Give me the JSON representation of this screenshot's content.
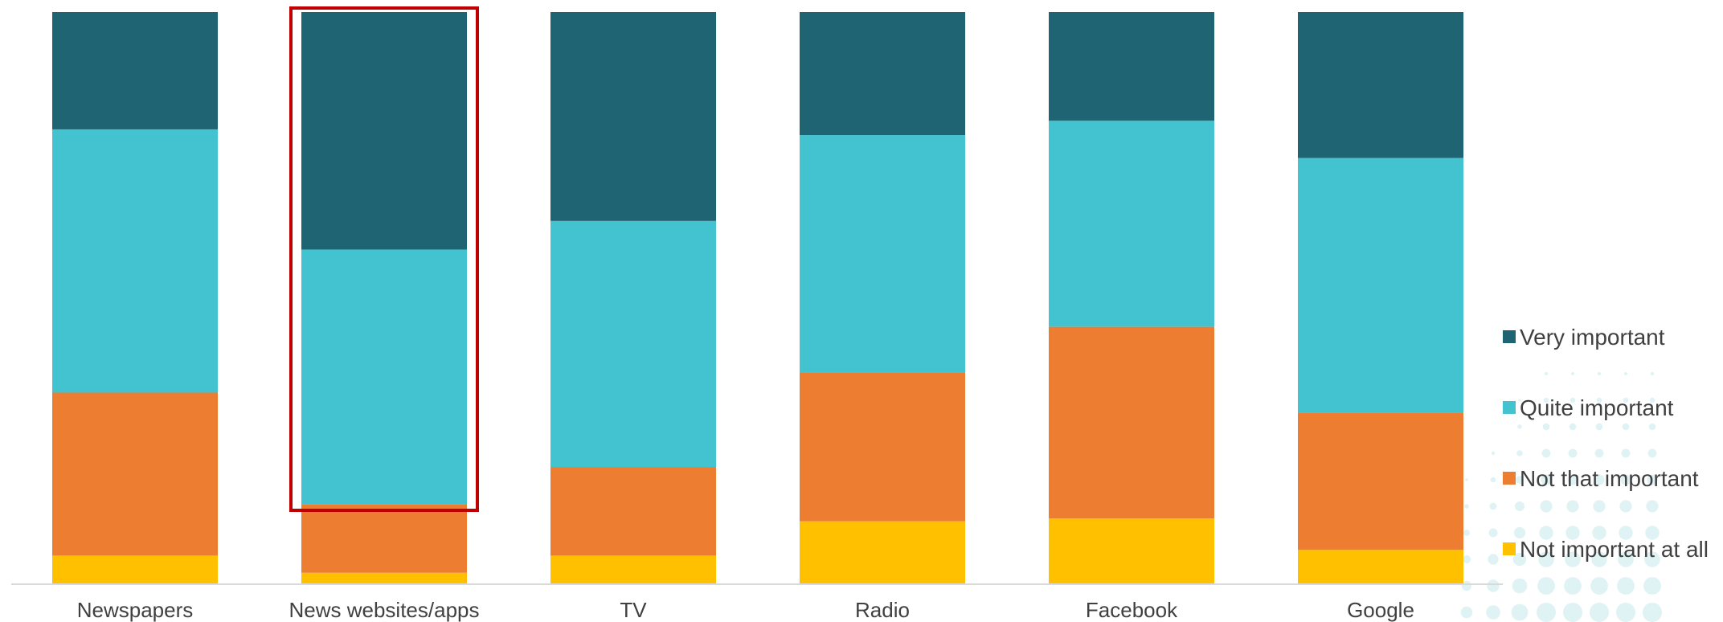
{
  "chart_data": {
    "type": "bar",
    "stacked": true,
    "normalized": true,
    "categories": [
      "Newspapers",
      "News websites/apps",
      "TV",
      "Radio",
      "Facebook",
      "Google"
    ],
    "series": [
      {
        "name": "Not important at all",
        "color": "#FFC000",
        "values": [
          5,
          2,
          5,
          11,
          11.5,
          6
        ]
      },
      {
        "name": "Not that important",
        "color": "#ED7D31",
        "values": [
          28.5,
          12,
          15.5,
          26,
          33.5,
          24
        ]
      },
      {
        "name": "Quite important",
        "color": "#42C3CF",
        "values": [
          46,
          44.5,
          43,
          41.5,
          36,
          44.5
        ]
      },
      {
        "name": "Very important",
        "color": "#1F6472",
        "values": [
          20.5,
          41.5,
          36.5,
          21.5,
          19,
          25.5
        ]
      }
    ],
    "ylim": [
      0,
      100
    ],
    "highlighted_category": "News websites/apps",
    "highlight_color": "#C00000",
    "legend_position": "right"
  }
}
